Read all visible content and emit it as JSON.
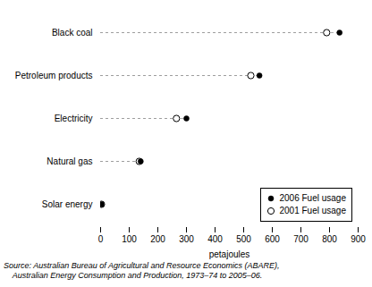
{
  "chart_data": {
    "type": "dot",
    "categories": [
      "Solar energy",
      "Natural gas",
      "Electricity",
      "Petroleum products",
      "Black coal"
    ],
    "series": [
      {
        "name": "2006 Fuel usage",
        "color": "#000000",
        "marker": "filled_circle",
        "values": [
          3,
          140,
          300,
          555,
          835
        ]
      },
      {
        "name": "2001 Fuel usage",
        "color": "#000000",
        "marker": "open_circle",
        "values": [
          3,
          135,
          265,
          525,
          790
        ]
      }
    ],
    "xlabel": "petajoules",
    "xlim": [
      0,
      900
    ],
    "xticks": [
      0,
      100,
      200,
      300,
      400,
      500,
      600,
      700,
      800,
      900
    ],
    "color": "#999999",
    "line_style": "dashed",
    "grid": false,
    "legend": "lower right",
    "annotations": [
      "Source: Australian Bureau of Agricultural and Resource Economics (ABARE),",
      "    Australian Energy Consumption and Production, 1973–74 to 2005–06."
    ]
  }
}
